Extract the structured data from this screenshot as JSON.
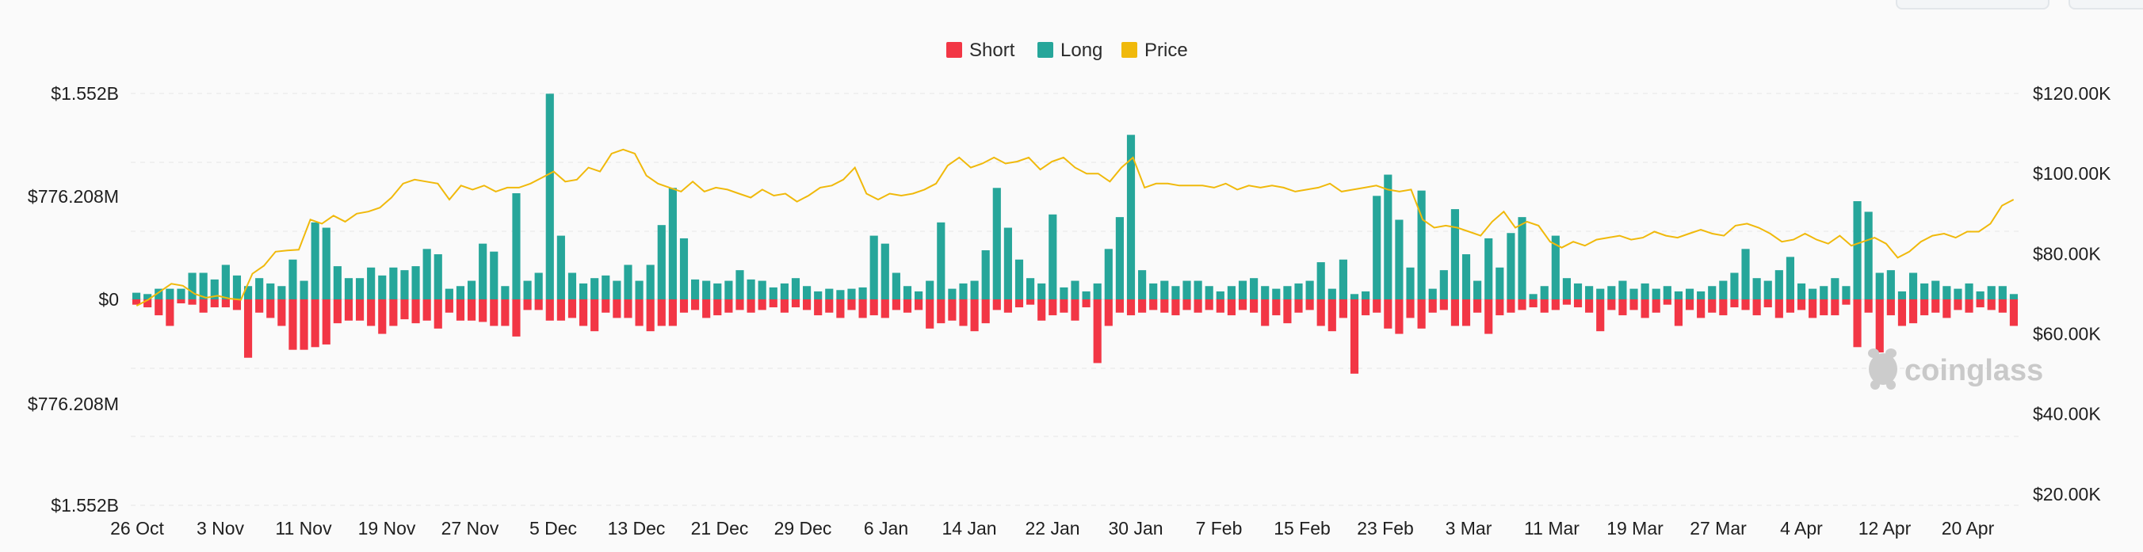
{
  "chart_data": {
    "type": "bar",
    "legend": [
      {
        "name": "Short",
        "color": "#f23645"
      },
      {
        "name": "Long",
        "color": "#26a69a"
      },
      {
        "name": "Price",
        "color": "#f0b90b"
      }
    ],
    "legend_position": "top-center",
    "y_left": {
      "ticks": [
        "$1.552B",
        "$776.208M",
        "$0",
        "$776.208M",
        "$1.552B"
      ],
      "range": [
        -1.552,
        1.552
      ],
      "unit": "B USD"
    },
    "y_right": {
      "ticks": [
        "$120.00K",
        "$100.00K",
        "$80.00K",
        "$60.00K",
        "$40.00K",
        "$20.00K"
      ],
      "range": [
        0,
        120000
      ]
    },
    "x_tick_labels": [
      "26 Oct",
      "3 Nov",
      "11 Nov",
      "19 Nov",
      "27 Nov",
      "5 Dec",
      "13 Dec",
      "21 Dec",
      "29 Dec",
      "6 Jan",
      "14 Jan",
      "22 Jan",
      "30 Jan",
      "7 Feb",
      "15 Feb",
      "23 Feb",
      "3 Mar",
      "11 Mar",
      "19 Mar",
      "27 Mar",
      "4 Apr",
      "12 Apr",
      "20 Apr"
    ],
    "grid": true,
    "watermark": "coinglass",
    "series": [
      {
        "name": "Long",
        "values": [
          0.05,
          0.04,
          0.08,
          0.08,
          0.08,
          0.2,
          0.2,
          0.15,
          0.26,
          0.18,
          0.1,
          0.16,
          0.12,
          0.1,
          0.3,
          0.14,
          0.58,
          0.54,
          0.25,
          0.16,
          0.16,
          0.24,
          0.18,
          0.24,
          0.22,
          0.25,
          0.38,
          0.34,
          0.08,
          0.1,
          0.14,
          0.42,
          0.36,
          0.1,
          0.8,
          0.14,
          0.2,
          1.55,
          0.48,
          0.2,
          0.12,
          0.16,
          0.18,
          0.14,
          0.26,
          0.14,
          0.26,
          0.56,
          0.84,
          0.46,
          0.15,
          0.14,
          0.12,
          0.14,
          0.22,
          0.15,
          0.14,
          0.09,
          0.12,
          0.16,
          0.1,
          0.06,
          0.08,
          0.07,
          0.08,
          0.09,
          0.48,
          0.42,
          0.2,
          0.1,
          0.06,
          0.14,
          0.58,
          0.08,
          0.12,
          0.14,
          0.37,
          0.84,
          0.54,
          0.3,
          0.16,
          0.12,
          0.64,
          0.09,
          0.14,
          0.06,
          0.12,
          0.38,
          0.62,
          1.24,
          0.22,
          0.12,
          0.14,
          0.1,
          0.14,
          0.14,
          0.1,
          0.06,
          0.1,
          0.14,
          0.16,
          0.1,
          0.08,
          0.1,
          0.12,
          0.14,
          0.28,
          0.08,
          0.3,
          0.04,
          0.06,
          0.78,
          0.94,
          0.6,
          0.24,
          0.82,
          0.08,
          0.22,
          0.68,
          0.34,
          0.14,
          0.46,
          0.24,
          0.5,
          0.62,
          0.04,
          0.1,
          0.48,
          0.16,
          0.12,
          0.1,
          0.08,
          0.1,
          0.14,
          0.08,
          0.12,
          0.08,
          0.1,
          0.06,
          0.08,
          0.06,
          0.1,
          0.14,
          0.2,
          0.38,
          0.16,
          0.14,
          0.22,
          0.32,
          0.12,
          0.08,
          0.1,
          0.16,
          0.1,
          0.74,
          0.66,
          0.2,
          0.22,
          0.06,
          0.2,
          0.12,
          0.14,
          0.1,
          0.08,
          0.12,
          0.06,
          0.1,
          0.1,
          0.04
        ]
      },
      {
        "name": "Short",
        "values": [
          0.04,
          0.06,
          0.12,
          0.2,
          0.03,
          0.04,
          0.1,
          0.06,
          0.06,
          0.08,
          0.44,
          0.1,
          0.14,
          0.2,
          0.38,
          0.38,
          0.36,
          0.34,
          0.18,
          0.16,
          0.16,
          0.2,
          0.26,
          0.2,
          0.15,
          0.18,
          0.16,
          0.22,
          0.1,
          0.16,
          0.16,
          0.17,
          0.2,
          0.2,
          0.28,
          0.08,
          0.08,
          0.16,
          0.16,
          0.14,
          0.2,
          0.24,
          0.1,
          0.14,
          0.14,
          0.2,
          0.24,
          0.2,
          0.2,
          0.1,
          0.08,
          0.14,
          0.12,
          0.1,
          0.08,
          0.1,
          0.08,
          0.06,
          0.1,
          0.06,
          0.08,
          0.12,
          0.1,
          0.14,
          0.08,
          0.14,
          0.12,
          0.14,
          0.08,
          0.1,
          0.08,
          0.22,
          0.18,
          0.16,
          0.2,
          0.24,
          0.18,
          0.08,
          0.1,
          0.06,
          0.04,
          0.16,
          0.12,
          0.1,
          0.16,
          0.06,
          0.48,
          0.2,
          0.1,
          0.12,
          0.1,
          0.08,
          0.1,
          0.12,
          0.08,
          0.1,
          0.08,
          0.1,
          0.12,
          0.08,
          0.1,
          0.2,
          0.12,
          0.18,
          0.1,
          0.08,
          0.2,
          0.24,
          0.14,
          0.56,
          0.12,
          0.1,
          0.22,
          0.26,
          0.14,
          0.22,
          0.1,
          0.08,
          0.2,
          0.2,
          0.1,
          0.26,
          0.12,
          0.1,
          0.08,
          0.06,
          0.1,
          0.08,
          0.04,
          0.06,
          0.1,
          0.24,
          0.08,
          0.12,
          0.08,
          0.14,
          0.1,
          0.04,
          0.2,
          0.08,
          0.14,
          0.1,
          0.12,
          0.06,
          0.08,
          0.12,
          0.06,
          0.14,
          0.1,
          0.08,
          0.14,
          0.12,
          0.12,
          0.04,
          0.36,
          0.1,
          0.4,
          0.12,
          0.2,
          0.18,
          0.12,
          0.1,
          0.14,
          0.08,
          0.1,
          0.06,
          0.08,
          0.1,
          0.2,
          0.52,
          0.08
        ]
      },
      {
        "name": "Price",
        "values": [
          67000,
          68500,
          70500,
          72500,
          72000,
          70000,
          69000,
          69500,
          68800,
          68500,
          75000,
          77000,
          80500,
          80800,
          81000,
          88500,
          87500,
          89500,
          88000,
          90000,
          90500,
          91500,
          94000,
          97500,
          98500,
          98000,
          97500,
          93500,
          97000,
          96000,
          97000,
          95500,
          96500,
          96500,
          97500,
          99000,
          100500,
          98000,
          98500,
          101500,
          100500,
          105000,
          106000,
          105000,
          99500,
          97500,
          96500,
          95500,
          98000,
          95500,
          96500,
          96000,
          95000,
          94000,
          96000,
          94500,
          95000,
          93000,
          94500,
          96500,
          97000,
          98500,
          101500,
          95000,
          93500,
          95000,
          94500,
          95000,
          96000,
          97500,
          102000,
          104000,
          101500,
          102500,
          104000,
          102500,
          103000,
          104000,
          101000,
          103000,
          104000,
          101500,
          100000,
          100000,
          98000,
          101500,
          104000,
          96500,
          97500,
          97500,
          97000,
          97000,
          97000,
          96500,
          97500,
          96000,
          97000,
          96500,
          97000,
          96500,
          95500,
          96000,
          96500,
          97500,
          95500,
          96000,
          96500,
          97000,
          96000,
          95500,
          96000,
          88500,
          86500,
          87000,
          86500,
          85500,
          84500,
          88000,
          90500,
          86500,
          88000,
          87000,
          83000,
          81500,
          83000,
          82000,
          83500,
          84000,
          84500,
          83500,
          84000,
          85500,
          84500,
          84000,
          85000,
          86000,
          85000,
          84500,
          87000,
          87500,
          86500,
          85000,
          83000,
          83500,
          85000,
          83500,
          82500,
          84500,
          82000,
          83000,
          84000,
          82500,
          79000,
          80500,
          83000,
          84500,
          85000,
          84000,
          85500,
          85500,
          87500,
          92000,
          93500
        ]
      }
    ]
  }
}
